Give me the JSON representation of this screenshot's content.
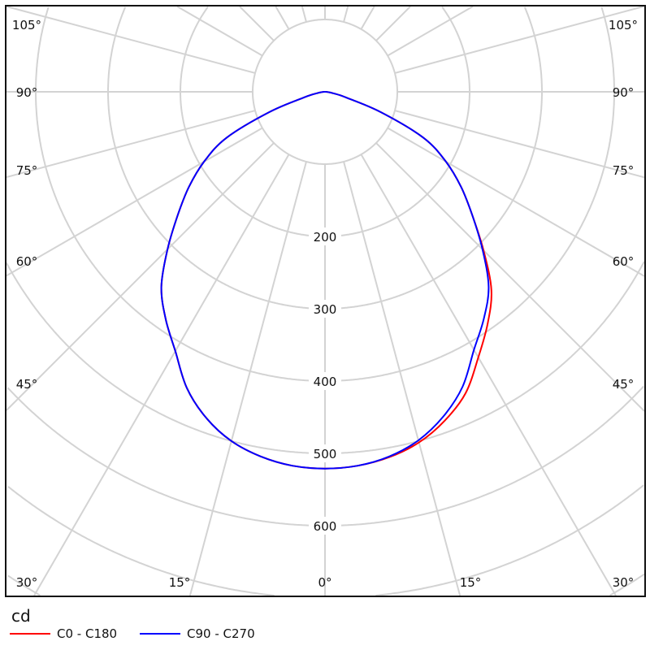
{
  "chart_data": {
    "type": "polar-line",
    "unit_label": "cd",
    "radial_ticks": [
      100,
      200,
      300,
      400,
      500,
      600,
      700,
      800,
      900
    ],
    "radial_tick_labels": [
      "200",
      "300",
      "400",
      "500",
      "600"
    ],
    "angle_ticks_deg": [
      0,
      15,
      30,
      45,
      60,
      75,
      90,
      105
    ],
    "angle_tick_labels": [
      "0°",
      "15°",
      "30°",
      "45°",
      "60°",
      "75°",
      "90°",
      "105°"
    ],
    "angles_deg": [
      0,
      5,
      10,
      15,
      20,
      25,
      30,
      35,
      40,
      45,
      50,
      55,
      60,
      65,
      70,
      75,
      80,
      85,
      90
    ],
    "series": [
      {
        "name": "C0 - C180",
        "color": "#ff0000",
        "left_values": [
          521,
          519,
          512,
          500,
          480,
          452,
          414,
          384,
          352,
          308,
          266,
          230,
          193,
          150,
          82,
          30,
          12,
          4,
          0
        ],
        "right_values": [
          521,
          519,
          513,
          502,
          484,
          460,
          424,
          392,
          358,
          310,
          266,
          230,
          193,
          150,
          82,
          30,
          12,
          4,
          0
        ]
      },
      {
        "name": "C90 - C270",
        "color": "#0000ff",
        "left_values": [
          521,
          519,
          512,
          500,
          480,
          452,
          414,
          384,
          352,
          308,
          266,
          230,
          193,
          150,
          82,
          30,
          12,
          4,
          0
        ],
        "right_values": [
          521,
          519,
          512,
          499,
          478,
          450,
          412,
          383,
          352,
          308,
          266,
          230,
          193,
          150,
          82,
          30,
          12,
          4,
          0
        ]
      }
    ],
    "grid": true,
    "legend_position": "bottom-left"
  }
}
